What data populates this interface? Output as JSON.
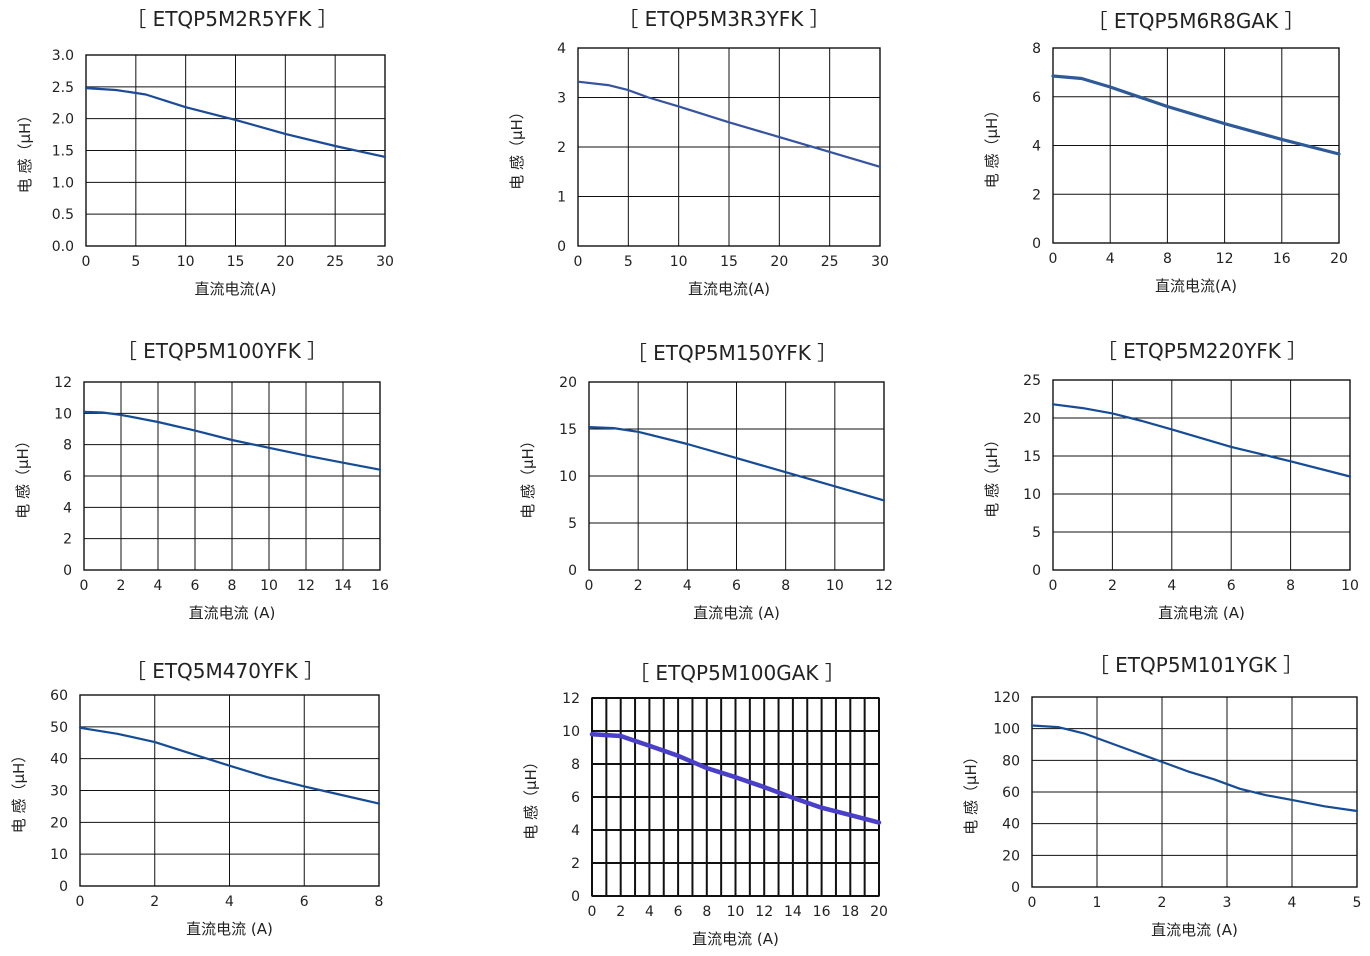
{
  "chart_data": [
    {
      "type": "line",
      "title": "［ ETQP5M2R5YFK ］",
      "title_color": "#222222",
      "xlabel": "直流电流(A)",
      "ylabel": "电 感（μH）",
      "xlim": [
        0,
        30
      ],
      "ylim": [
        0,
        3.0
      ],
      "xticks": [
        "0",
        "5",
        "10",
        "15",
        "20",
        "25",
        "30"
      ],
      "yticks": [
        "0.0",
        "0.5",
        "1.0",
        "1.5",
        "2.0",
        "2.5",
        "3.0"
      ],
      "xgrid": [
        0,
        5,
        10,
        15,
        20,
        25,
        30
      ],
      "ygrid": [
        0,
        0.5,
        1.0,
        1.5,
        2.0,
        2.5,
        3.0
      ],
      "series": [
        {
          "color": "#1b4a98",
          "x": [
            0,
            3,
            6,
            8,
            10,
            15,
            20,
            25,
            30
          ],
          "y": [
            2.48,
            2.45,
            2.38,
            2.28,
            2.18,
            1.98,
            1.76,
            1.57,
            1.4
          ]
        }
      ]
    },
    {
      "type": "line",
      "title": "［ ETQP5M3R3YFK ］",
      "title_color": "#222222",
      "xlabel": "直流电流(A)",
      "ylabel": "电 感（μH）",
      "xlim": [
        0,
        30
      ],
      "ylim": [
        0,
        4
      ],
      "xticks": [
        "0",
        "5",
        "10",
        "15",
        "20",
        "25",
        "30"
      ],
      "yticks": [
        "0",
        "1",
        "2",
        "3",
        "4"
      ],
      "xgrid": [
        0,
        5,
        10,
        15,
        20,
        25,
        30
      ],
      "ygrid": [
        0,
        1,
        2,
        3,
        4
      ],
      "series": [
        {
          "color": "#3553a0",
          "x": [
            0,
            3,
            5,
            7,
            10,
            15,
            20,
            25,
            30
          ],
          "y": [
            3.32,
            3.25,
            3.15,
            3.0,
            2.82,
            2.5,
            2.2,
            1.9,
            1.6
          ]
        }
      ]
    },
    {
      "type": "line",
      "title": "［ ETQP5M6R8GAK ］",
      "title_color": "#c8174e",
      "xlabel": "直流电流(A)",
      "ylabel": "电 感（μH）",
      "xlim": [
        0,
        20
      ],
      "ylim": [
        0,
        8
      ],
      "xticks": [
        "0",
        "4",
        "8",
        "12",
        "16",
        "20"
      ],
      "yticks": [
        "0",
        "2",
        "4",
        "6",
        "8"
      ],
      "xgrid": [
        0,
        4,
        8,
        12,
        16,
        20
      ],
      "ygrid": [
        0,
        2,
        4,
        6,
        8
      ],
      "series": [
        {
          "color": "#2e5a98",
          "x": [
            0,
            2,
            4,
            6,
            8,
            12,
            16,
            20
          ],
          "y": [
            6.85,
            6.75,
            6.4,
            6.0,
            5.6,
            4.9,
            4.25,
            3.65
          ]
        }
      ]
    },
    {
      "type": "line",
      "title": "［ ETQP5M100YFK ］",
      "title_color": "#222222",
      "xlabel": "直流电流 (A)",
      "ylabel": "电 感（μH）",
      "xlim": [
        0,
        16
      ],
      "ylim": [
        0,
        12
      ],
      "xticks": [
        "0",
        "2",
        "4",
        "6",
        "8",
        "10",
        "12",
        "14",
        "16"
      ],
      "yticks": [
        "0",
        "2",
        "4",
        "6",
        "8",
        "10",
        "12"
      ],
      "xgrid": [
        0,
        2,
        4,
        6,
        8,
        10,
        12,
        14,
        16
      ],
      "ygrid": [
        0,
        2,
        4,
        6,
        8,
        10,
        12
      ],
      "series": [
        {
          "color": "#164c96",
          "x": [
            0,
            1,
            2,
            4,
            6,
            8,
            10,
            12,
            14,
            16
          ],
          "y": [
            10.1,
            10.05,
            9.9,
            9.45,
            8.9,
            8.3,
            7.8,
            7.3,
            6.85,
            6.4
          ]
        }
      ]
    },
    {
      "type": "line",
      "title": "［ ETQP5M150YFK ］",
      "title_color": "#222222",
      "xlabel": "直流电流 (A)",
      "ylabel": "电 感（μH）",
      "xlim": [
        0,
        12
      ],
      "ylim": [
        0,
        20
      ],
      "xticks": [
        "0",
        "2",
        "4",
        "6",
        "8",
        "10",
        "12"
      ],
      "yticks": [
        "0",
        "5",
        "10",
        "15",
        "20"
      ],
      "xgrid": [
        0,
        2,
        4,
        6,
        8,
        10,
        12
      ],
      "ygrid": [
        0,
        5,
        10,
        15,
        20
      ],
      "series": [
        {
          "color": "#164c96",
          "x": [
            0,
            1,
            2,
            4,
            6,
            8,
            10,
            12
          ],
          "y": [
            15.2,
            15.1,
            14.7,
            13.4,
            11.9,
            10.4,
            8.9,
            7.4
          ]
        }
      ]
    },
    {
      "type": "line",
      "title": "［ ETQP5M220YFK ］",
      "title_color": "#222222",
      "xlabel": "直流电流 (A)",
      "ylabel": "电 感（μH）",
      "xlim": [
        0,
        10
      ],
      "ylim": [
        0,
        25
      ],
      "xticks": [
        "0",
        "2",
        "4",
        "6",
        "8",
        "10"
      ],
      "yticks": [
        "0",
        "5",
        "10",
        "15",
        "20",
        "25"
      ],
      "xgrid": [
        0,
        2,
        4,
        6,
        8,
        10
      ],
      "ygrid": [
        0,
        5,
        10,
        15,
        20,
        25
      ],
      "series": [
        {
          "color": "#164c96",
          "x": [
            0,
            1,
            2,
            3,
            4,
            6,
            8,
            10
          ],
          "y": [
            21.8,
            21.3,
            20.6,
            19.6,
            18.5,
            16.2,
            14.3,
            12.3
          ]
        }
      ]
    },
    {
      "type": "line",
      "title": "［ ETQ5M470YFK ］",
      "title_color": "#222222",
      "xlabel": "直流电流 (A)",
      "ylabel": "电 感（μH）",
      "xlim": [
        0,
        8
      ],
      "ylim": [
        0,
        60
      ],
      "xticks": [
        "0",
        "2",
        "4",
        "6",
        "8"
      ],
      "yticks": [
        "0",
        "10",
        "20",
        "30",
        "40",
        "50",
        "60"
      ],
      "xgrid": [
        0,
        2,
        4,
        6,
        8
      ],
      "ygrid": [
        0,
        10,
        20,
        30,
        40,
        50,
        60
      ],
      "series": [
        {
          "color": "#164c96",
          "x": [
            0,
            1,
            2,
            3,
            4,
            5,
            6,
            7,
            8
          ],
          "y": [
            49.7,
            47.8,
            45.2,
            41.5,
            37.8,
            34.2,
            31.3,
            28.6,
            25.9
          ]
        }
      ]
    },
    {
      "type": "line",
      "title": "［  ETQP5M100GAK  ］",
      "title_color": "#222222",
      "xlabel": "直流电流 (A)",
      "ylabel": "电 感（μH）",
      "xlim": [
        0,
        20
      ],
      "ylim": [
        0,
        12
      ],
      "xticks": [
        "0",
        "2",
        "4",
        "6",
        "8",
        "10",
        "12",
        "14",
        "16",
        "18",
        "20"
      ],
      "yticks": [
        "0",
        "2",
        "4",
        "6",
        "8",
        "10",
        "12"
      ],
      "xgrid": [
        0,
        1,
        2,
        3,
        4,
        5,
        6,
        7,
        8,
        9,
        10,
        11,
        12,
        13,
        14,
        15,
        16,
        17,
        18,
        19,
        20
      ],
      "ygrid": [
        0,
        2,
        4,
        6,
        8,
        10,
        12
      ],
      "series": [
        {
          "color": "#4a3fc8",
          "x": [
            0,
            2,
            4,
            6,
            8,
            10,
            12,
            14,
            16,
            18,
            20
          ],
          "y": [
            9.8,
            9.7,
            9.1,
            8.5,
            7.75,
            7.2,
            6.6,
            5.95,
            5.35,
            4.9,
            4.45
          ]
        }
      ]
    },
    {
      "type": "line",
      "title": "［ ETQP5M101YGK ］",
      "title_color": "#222222",
      "xlabel": "直流电流 (A)",
      "ylabel": "电 感（μH）",
      "xlim": [
        0,
        5
      ],
      "ylim": [
        0,
        120
      ],
      "xticks": [
        "0",
        "1",
        "2",
        "3",
        "4",
        "5"
      ],
      "yticks": [
        "0",
        "20",
        "40",
        "60",
        "80",
        "100",
        "120"
      ],
      "xgrid": [
        0,
        1,
        2,
        3,
        4,
        5
      ],
      "ygrid": [
        0,
        20,
        40,
        60,
        80,
        100,
        120
      ],
      "series": [
        {
          "color": "#164c96",
          "x": [
            0,
            0.4,
            0.8,
            1.2,
            1.6,
            2.0,
            2.4,
            2.8,
            3.2,
            3.6,
            4.0,
            4.5,
            5.0
          ],
          "y": [
            102,
            101,
            97,
            91,
            85,
            79,
            73,
            68,
            62,
            58,
            55,
            51,
            48
          ]
        }
      ]
    }
  ]
}
